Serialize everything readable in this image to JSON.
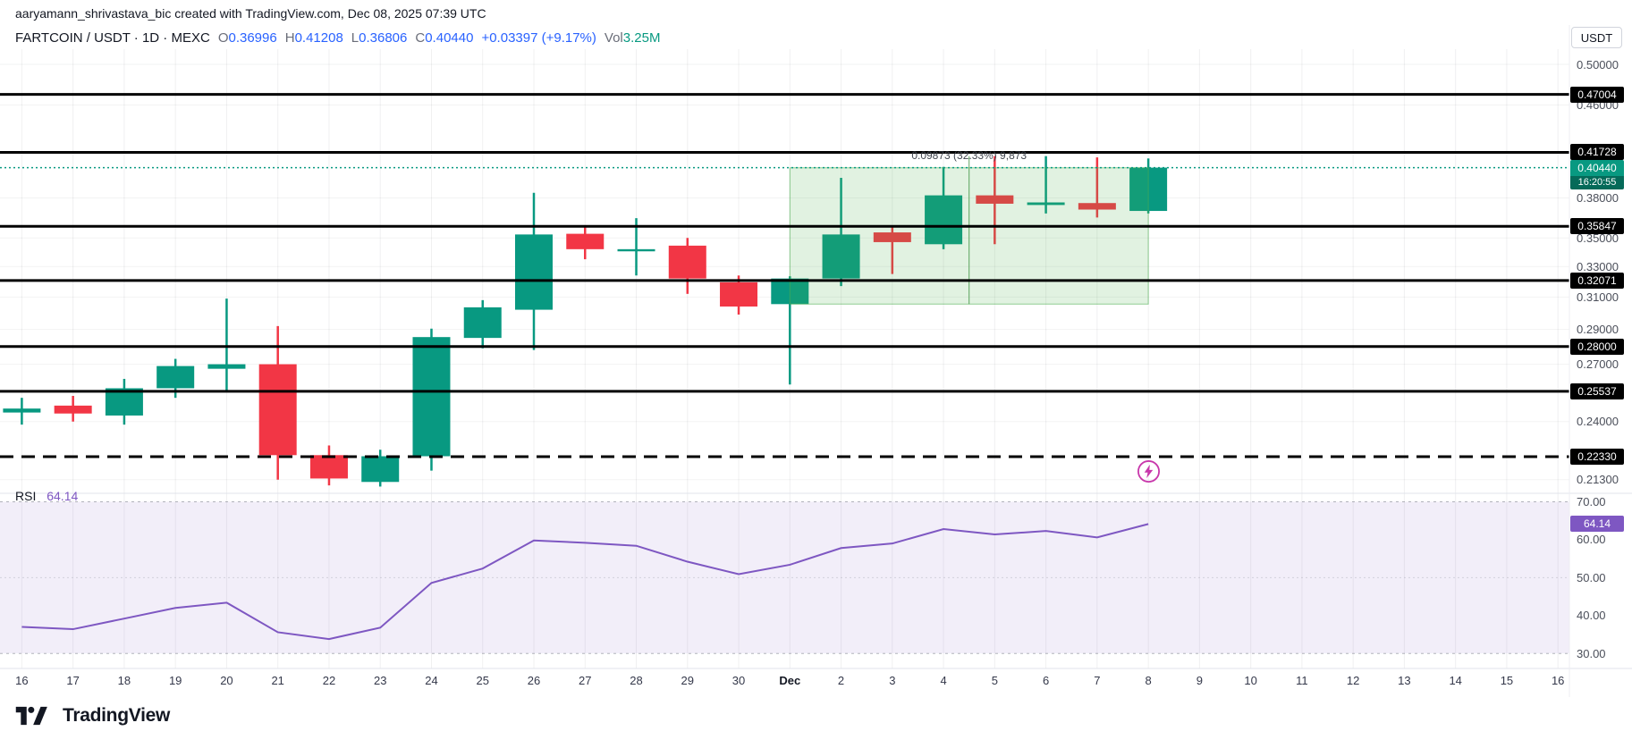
{
  "header": {
    "attribution": "aaryamann_shrivastava_bic created with TradingView.com, Dec 08, 2025 07:39 UTC"
  },
  "legend": {
    "title": "FARTCOIN / USDT · 1D · MEXC",
    "ohlc": [
      {
        "label": "O",
        "value": "0.36996"
      },
      {
        "label": "H",
        "value": "0.41208"
      },
      {
        "label": "L",
        "value": "0.36806"
      },
      {
        "label": "C",
        "value": "0.40440"
      }
    ],
    "change": "+0.03397 (+9.17%)",
    "vol_label": "Vol",
    "vol_value": "3.25M"
  },
  "currency_button": "USDT",
  "chart_data": {
    "type": "candlestick",
    "symbol": "FARTCOIN / USDT",
    "interval": "1D",
    "exchange": "MEXC",
    "scale": "log",
    "x_labels": [
      "16",
      "17",
      "18",
      "19",
      "20",
      "21",
      "22",
      "23",
      "24",
      "25",
      "26",
      "27",
      "28",
      "29",
      "30",
      "Dec",
      "2",
      "3",
      "4",
      "5",
      "6",
      "7",
      "8",
      "9",
      "10",
      "11",
      "12",
      "13",
      "14",
      "15",
      "16"
    ],
    "candles": [
      {
        "t": "16",
        "o": 0.2445,
        "h": 0.252,
        "l": 0.2385,
        "c": 0.2465
      },
      {
        "t": "17",
        "o": 0.248,
        "h": 0.253,
        "l": 0.24,
        "c": 0.244
      },
      {
        "t": "18",
        "o": 0.243,
        "h": 0.262,
        "l": 0.2385,
        "c": 0.257
      },
      {
        "t": "19",
        "o": 0.257,
        "h": 0.273,
        "l": 0.252,
        "c": 0.269
      },
      {
        "t": "20",
        "o": 0.2675,
        "h": 0.309,
        "l": 0.256,
        "c": 0.27
      },
      {
        "t": "21",
        "o": 0.27,
        "h": 0.292,
        "l": 0.213,
        "c": 0.224
      },
      {
        "t": "22",
        "o": 0.224,
        "h": 0.2285,
        "l": 0.2105,
        "c": 0.2135
      },
      {
        "t": "23",
        "o": 0.212,
        "h": 0.2265,
        "l": 0.21,
        "c": 0.2235
      },
      {
        "t": "24",
        "o": 0.2235,
        "h": 0.2905,
        "l": 0.217,
        "c": 0.2855
      },
      {
        "t": "25",
        "o": 0.285,
        "h": 0.308,
        "l": 0.279,
        "c": 0.3035
      },
      {
        "t": "26",
        "o": 0.302,
        "h": 0.384,
        "l": 0.278,
        "c": 0.3525
      },
      {
        "t": "27",
        "o": 0.353,
        "h": 0.359,
        "l": 0.335,
        "c": 0.342
      },
      {
        "t": "28",
        "o": 0.3405,
        "h": 0.3645,
        "l": 0.324,
        "c": 0.342
      },
      {
        "t": "29",
        "o": 0.3445,
        "h": 0.35,
        "l": 0.312,
        "c": 0.322
      },
      {
        "t": "30",
        "o": 0.3195,
        "h": 0.324,
        "l": 0.299,
        "c": 0.304
      },
      {
        "t": "Dec",
        "o": 0.3055,
        "h": 0.3235,
        "l": 0.259,
        "c": 0.322
      },
      {
        "t": "2",
        "o": 0.322,
        "h": 0.396,
        "l": 0.317,
        "c": 0.3525
      },
      {
        "t": "3",
        "o": 0.354,
        "h": 0.359,
        "l": 0.325,
        "c": 0.347
      },
      {
        "t": "4",
        "o": 0.3455,
        "h": 0.405,
        "l": 0.342,
        "c": 0.382
      },
      {
        "t": "5",
        "o": 0.382,
        "h": 0.414,
        "l": 0.3455,
        "c": 0.3755
      },
      {
        "t": "6",
        "o": 0.3745,
        "h": 0.414,
        "l": 0.368,
        "c": 0.3765
      },
      {
        "t": "7",
        "o": 0.376,
        "h": 0.413,
        "l": 0.365,
        "c": 0.371
      },
      {
        "t": "8",
        "o": 0.36996,
        "h": 0.41208,
        "l": 0.36806,
        "c": 0.4044
      }
    ],
    "horizontal_levels": [
      0.47004,
      0.41728,
      0.35847,
      0.32071,
      0.28,
      0.25537
    ],
    "dashed_level": 0.2233,
    "last_price": 0.4044,
    "last_price_countdown": "16:20:55",
    "y_ticks": [
      0.5,
      0.46,
      0.38,
      0.35,
      0.33,
      0.31,
      0.29,
      0.27,
      0.24,
      0.213
    ],
    "measurement": {
      "label": "0.09873 (32.33%) 9,873",
      "from_index": 15,
      "to_index": 22,
      "top": 0.40426,
      "bottom": 0.30553
    },
    "rsi": {
      "label": "RSI",
      "current": 64.14,
      "values": [
        37.0,
        36.4,
        39.2,
        42.0,
        43.4,
        35.6,
        33.8,
        36.8,
        48.6,
        52.4,
        59.8,
        59.2,
        58.4,
        54.2,
        50.9,
        53.4,
        57.8,
        59.0,
        62.8,
        61.4,
        62.3,
        60.6,
        64.14
      ],
      "y_ticks": [
        70,
        60,
        50,
        40,
        30
      ],
      "band": [
        30,
        70
      ]
    }
  },
  "footer": {
    "logo_text": "TradingView"
  },
  "colors": {
    "up": "#089981",
    "down": "#f23645",
    "accent": "#2962ff",
    "rsi": "#7e57c2",
    "measure": "#4caf50",
    "badge_dark": "#000000",
    "lightning": "#c837ab"
  }
}
